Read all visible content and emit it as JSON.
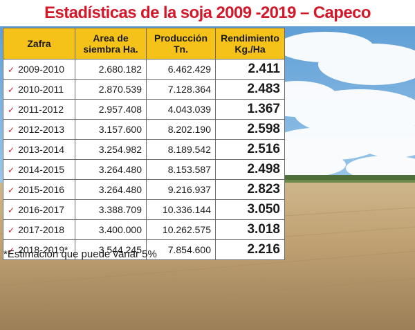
{
  "title": "Estadísticas de la soja 2009 -2019 – Capeco",
  "footnote": "*Estimación que puede variar 5%",
  "colors": {
    "title": "#d3182a",
    "header_bg": "#f5c21a",
    "check": "#d3182a"
  },
  "chart_data": {
    "type": "table",
    "title": "Estadísticas de la soja 2009 -2019 – Capeco",
    "columns": [
      "Zafra",
      "Area de siembra Ha.",
      "Producción Tn.",
      "Rendimiento Kg./Ha"
    ],
    "header_lines": [
      [
        "Zafra"
      ],
      [
        "Area de",
        "siembra Ha."
      ],
      [
        "Producción",
        "Tn."
      ],
      [
        "Rendimiento",
        "Kg./Ha"
      ]
    ],
    "rows": [
      [
        "2009-2010",
        "2.680.182",
        "6.462.429",
        "2.411"
      ],
      [
        "2010-2011",
        "2.870.539",
        "7.128.364",
        "2.483"
      ],
      [
        "2011-2012",
        "2.957.408",
        "4.043.039",
        "1.367"
      ],
      [
        "2012-2013",
        "3.157.600",
        "8.202.190",
        "2.598"
      ],
      [
        "2013-2014",
        "3.254.982",
        "8.189.542",
        "2.516"
      ],
      [
        "2014-2015",
        "3.264.480",
        "8.153.587",
        "2.498"
      ],
      [
        "2015-2016",
        "3.264.480",
        "9.216.937",
        "2.823"
      ],
      [
        "2016-2017",
        "3.388.709",
        "10.336.144",
        "3.050"
      ],
      [
        "2017-2018",
        "3.400.000",
        "10.262.575",
        "3.018"
      ],
      [
        "2018-2019*",
        "3.544.245",
        "7.854.600",
        "2.216"
      ]
    ]
  }
}
